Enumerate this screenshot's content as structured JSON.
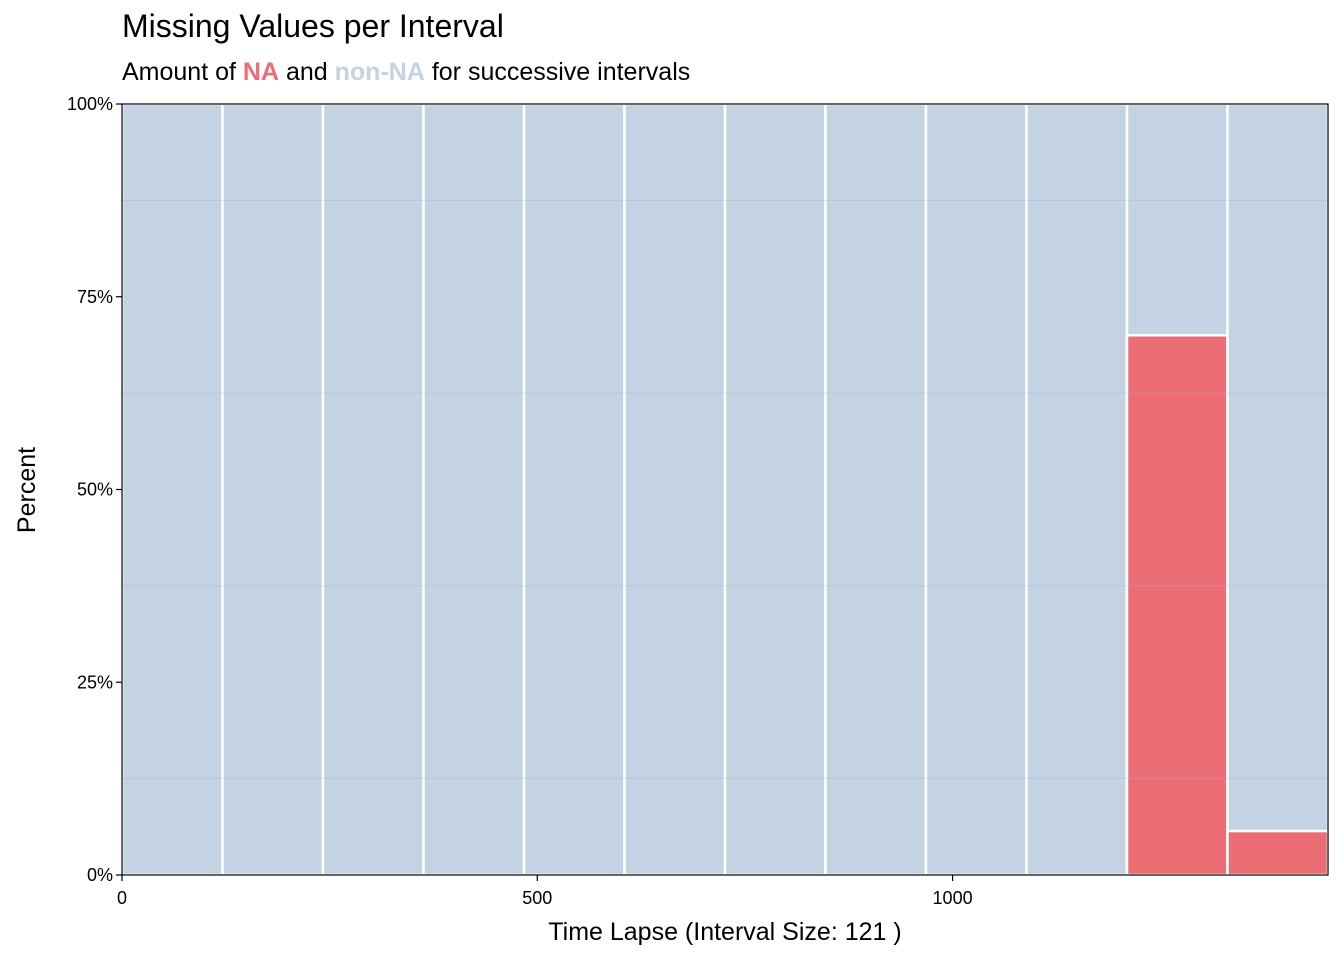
{
  "chart_data": {
    "type": "bar",
    "title": "Missing Values per Interval",
    "subtitle": {
      "prefix": "Amount of ",
      "na": "NA",
      "middle": " and ",
      "non_na": "non-NA",
      "suffix": " for successive intervals"
    },
    "xlabel": "Time Lapse (Interval Size: 121 )",
    "ylabel": "Percent",
    "xlim": [
      0,
      1452
    ],
    "ylim": [
      0,
      1
    ],
    "x_ticks": [
      {
        "value": 0,
        "label": "0"
      },
      {
        "value": 500,
        "label": "500"
      },
      {
        "value": 1000,
        "label": "1000"
      }
    ],
    "y_ticks": [
      {
        "value": 0,
        "label": "0%"
      },
      {
        "value": 0.25,
        "label": "25%"
      },
      {
        "value": 0.5,
        "label": "50%"
      },
      {
        "value": 0.75,
        "label": "75%"
      },
      {
        "value": 1,
        "label": "100%"
      }
    ],
    "interval_size": 121,
    "intervals": [
      {
        "start": 0,
        "end": 121,
        "na": 0
      },
      {
        "start": 121,
        "end": 242,
        "na": 0
      },
      {
        "start": 242,
        "end": 363,
        "na": 0
      },
      {
        "start": 363,
        "end": 484,
        "na": 0
      },
      {
        "start": 484,
        "end": 605,
        "na": 0
      },
      {
        "start": 605,
        "end": 726,
        "na": 0
      },
      {
        "start": 726,
        "end": 847,
        "na": 0
      },
      {
        "start": 847,
        "end": 968,
        "na": 0
      },
      {
        "start": 968,
        "end": 1089,
        "na": 0
      },
      {
        "start": 1089,
        "end": 1210,
        "na": 0
      },
      {
        "start": 1210,
        "end": 1331,
        "na": 0.7
      },
      {
        "start": 1331,
        "end": 1452,
        "na": 0.057
      }
    ],
    "colors": {
      "na": "#EC6E74",
      "non_na": "#C3D3E3",
      "grid": "#aab6c4"
    },
    "grid": true,
    "legend": "none"
  }
}
